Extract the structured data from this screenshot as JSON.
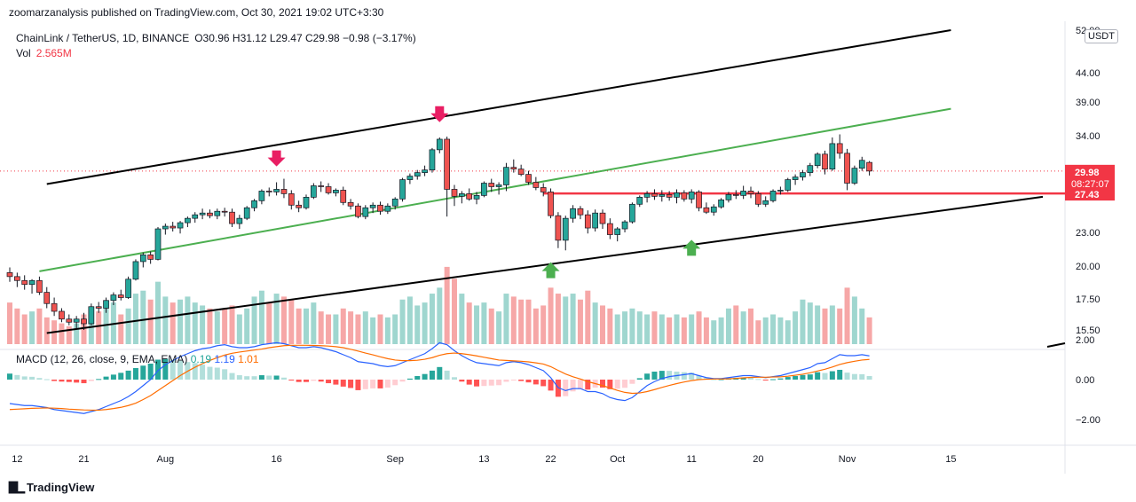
{
  "header": {
    "publisher": "zoomarzanalysis published on TradingView.com, Oct 30, 2021 19:02 UTC+3:30"
  },
  "legend": {
    "symbol": "ChainLink / TetherUS, 1D, BINANCE",
    "ohlc": "O30.96  H31.12  L29.47  C29.98  −0.98 (−3.17%)",
    "vol_label": "Vol",
    "vol_value": "2.565M"
  },
  "currency": "USDT",
  "price_axis": {
    "ticks": [
      {
        "value": 52.0,
        "label": "52.00"
      },
      {
        "value": 44.0,
        "label": "44.00"
      },
      {
        "value": 39.0,
        "label": "39.00"
      },
      {
        "value": 34.0,
        "label": "34.00"
      },
      {
        "value": 23.0,
        "label": "23.00"
      },
      {
        "value": 20.0,
        "label": "20.00"
      },
      {
        "value": 17.5,
        "label": "17.50"
      },
      {
        "value": 15.5,
        "label": "15.50"
      }
    ],
    "last_price": "29.98",
    "countdown": "08:27:07",
    "level_price": "27.43"
  },
  "macd_legend": {
    "label": "MACD (12, 26, close, 9, EMA, EMA)",
    "hist": "0.19",
    "macd": "1.19",
    "signal": "1.01"
  },
  "macd_axis": [
    {
      "value": 2,
      "label": "2.00"
    },
    {
      "value": 0,
      "label": "0.00"
    },
    {
      "value": -2,
      "label": "−2.00"
    }
  ],
  "time_axis": [
    {
      "bar": 1,
      "label": "12"
    },
    {
      "bar": 10,
      "label": "21"
    },
    {
      "bar": 21,
      "label": "Aug"
    },
    {
      "bar": 36,
      "label": "16"
    },
    {
      "bar": 52,
      "label": "Sep"
    },
    {
      "bar": 64,
      "label": "13"
    },
    {
      "bar": 73,
      "label": "22"
    },
    {
      "bar": 82,
      "label": "Oct"
    },
    {
      "bar": 92,
      "label": "11"
    },
    {
      "bar": 101,
      "label": "20"
    },
    {
      "bar": 113,
      "label": "Nov"
    },
    {
      "bar": 127,
      "label": "15"
    }
  ],
  "footer": {
    "brand": "TradingView"
  },
  "chart_data": {
    "type": "candlestick",
    "symbol": "LINKUSDT",
    "x_start": "2021-07-10",
    "interval": "1D",
    "candles": [
      [
        19.5,
        19.9,
        18.8,
        19.2
      ],
      [
        19.2,
        19.5,
        18.4,
        18.9
      ],
      [
        18.9,
        19.3,
        18.2,
        18.6
      ],
      [
        18.6,
        19.0,
        17.9,
        18.9
      ],
      [
        18.9,
        19.2,
        17.8,
        18.0
      ],
      [
        18.0,
        18.4,
        16.9,
        17.2
      ],
      [
        17.2,
        17.6,
        16.4,
        16.7
      ],
      [
        16.7,
        16.9,
        16.0,
        16.2
      ],
      [
        16.2,
        16.5,
        15.8,
        16.0
      ],
      [
        16.0,
        16.4,
        15.6,
        16.2
      ],
      [
        16.2,
        16.6,
        15.5,
        15.9
      ],
      [
        15.9,
        17.2,
        15.8,
        17.0
      ],
      [
        17.0,
        17.3,
        16.6,
        16.9
      ],
      [
        16.9,
        17.6,
        16.6,
        17.4
      ],
      [
        17.4,
        18.0,
        17.1,
        17.8
      ],
      [
        17.8,
        18.2,
        17.4,
        17.6
      ],
      [
        17.6,
        19.2,
        17.5,
        19.0
      ],
      [
        19.0,
        20.6,
        18.9,
        20.4
      ],
      [
        20.4,
        21.2,
        19.9,
        21.0
      ],
      [
        21.0,
        21.3,
        20.2,
        20.6
      ],
      [
        20.6,
        23.6,
        20.5,
        23.4
      ],
      [
        23.4,
        24.0,
        22.8,
        23.7
      ],
      [
        23.7,
        24.2,
        23.1,
        23.5
      ],
      [
        23.5,
        24.3,
        22.9,
        24.1
      ],
      [
        24.1,
        24.8,
        23.6,
        24.6
      ],
      [
        24.6,
        25.3,
        24.1,
        25.0
      ],
      [
        25.0,
        25.7,
        24.5,
        25.2
      ],
      [
        25.2,
        25.6,
        24.6,
        24.9
      ],
      [
        24.9,
        25.7,
        24.5,
        25.4
      ],
      [
        25.4,
        25.8,
        24.8,
        25.3
      ],
      [
        25.3,
        25.7,
        23.6,
        24.0
      ],
      [
        24.0,
        25.0,
        23.4,
        24.6
      ],
      [
        24.6,
        26.0,
        24.4,
        25.8
      ],
      [
        25.8,
        26.8,
        25.4,
        26.6
      ],
      [
        26.6,
        27.9,
        26.2,
        27.7
      ],
      [
        27.7,
        28.1,
        27.1,
        27.6
      ],
      [
        27.6,
        28.7,
        27.2,
        27.9
      ],
      [
        27.9,
        29.1,
        26.9,
        27.4
      ],
      [
        27.4,
        27.8,
        25.6,
        26.1
      ],
      [
        26.1,
        26.6,
        25.3,
        25.8
      ],
      [
        25.8,
        27.3,
        25.6,
        27.0
      ],
      [
        27.0,
        28.6,
        26.8,
        28.3
      ],
      [
        28.3,
        28.8,
        27.6,
        28.2
      ],
      [
        28.2,
        28.6,
        27.3,
        27.5
      ],
      [
        27.5,
        28.0,
        27.1,
        27.8
      ],
      [
        27.8,
        28.2,
        26.1,
        26.4
      ],
      [
        26.4,
        26.8,
        25.6,
        26.0
      ],
      [
        26.0,
        26.3,
        24.6,
        24.8
      ],
      [
        24.8,
        26.1,
        24.5,
        25.8
      ],
      [
        25.8,
        26.4,
        25.2,
        26.1
      ],
      [
        26.1,
        26.5,
        25.0,
        25.4
      ],
      [
        25.4,
        26.3,
        25.1,
        26.0
      ],
      [
        26.0,
        27.0,
        25.6,
        26.8
      ],
      [
        26.8,
        29.2,
        26.5,
        29.0
      ],
      [
        29.0,
        29.7,
        28.5,
        29.4
      ],
      [
        29.4,
        30.1,
        29.0,
        29.8
      ],
      [
        29.8,
        30.6,
        29.4,
        30.1
      ],
      [
        30.1,
        32.6,
        29.8,
        32.4
      ],
      [
        32.4,
        33.8,
        32.0,
        33.6
      ],
      [
        33.6,
        33.9,
        24.8,
        27.9
      ],
      [
        27.9,
        28.4,
        26.0,
        27.1
      ],
      [
        27.1,
        27.7,
        26.3,
        27.4
      ],
      [
        27.4,
        28.0,
        26.6,
        26.8
      ],
      [
        26.8,
        27.6,
        26.2,
        27.2
      ],
      [
        27.2,
        28.8,
        27.0,
        28.6
      ],
      [
        28.6,
        29.1,
        27.6,
        28.2
      ],
      [
        28.2,
        28.7,
        27.3,
        28.4
      ],
      [
        28.4,
        30.9,
        27.7,
        30.4
      ],
      [
        30.4,
        31.3,
        29.8,
        30.2
      ],
      [
        30.2,
        30.7,
        29.4,
        29.6
      ],
      [
        29.6,
        30.0,
        28.4,
        28.7
      ],
      [
        28.7,
        29.3,
        27.8,
        28.1
      ],
      [
        28.1,
        28.6,
        27.1,
        27.6
      ],
      [
        27.6,
        28.0,
        24.6,
        24.9
      ],
      [
        24.9,
        25.3,
        21.6,
        22.3
      ],
      [
        22.3,
        24.9,
        21.4,
        24.6
      ],
      [
        24.6,
        26.1,
        24.1,
        25.7
      ],
      [
        25.7,
        26.0,
        24.5,
        25.0
      ],
      [
        25.0,
        25.5,
        22.9,
        23.5
      ],
      [
        23.5,
        25.6,
        23.1,
        25.2
      ],
      [
        25.2,
        25.6,
        23.4,
        24.0
      ],
      [
        24.0,
        24.6,
        22.4,
        22.8
      ],
      [
        22.8,
        23.6,
        22.2,
        23.4
      ],
      [
        23.4,
        24.4,
        23.0,
        24.2
      ],
      [
        24.2,
        26.4,
        24.0,
        26.2
      ],
      [
        26.2,
        27.2,
        25.9,
        27.0
      ],
      [
        27.0,
        27.7,
        26.4,
        27.4
      ],
      [
        27.4,
        27.9,
        26.7,
        27.1
      ],
      [
        27.1,
        27.8,
        26.5,
        27.3
      ],
      [
        27.3,
        27.7,
        26.6,
        27.0
      ],
      [
        27.0,
        27.9,
        26.3,
        27.5
      ],
      [
        27.5,
        27.8,
        26.5,
        26.8
      ],
      [
        26.8,
        27.9,
        26.3,
        27.6
      ],
      [
        27.6,
        27.8,
        25.4,
        25.8
      ],
      [
        25.8,
        26.4,
        25.1,
        25.3
      ],
      [
        25.3,
        26.2,
        24.9,
        25.9
      ],
      [
        25.9,
        26.9,
        25.7,
        26.7
      ],
      [
        26.7,
        27.6,
        26.4,
        27.3
      ],
      [
        27.3,
        27.8,
        26.8,
        27.2
      ],
      [
        27.2,
        28.3,
        26.8,
        27.7
      ],
      [
        27.7,
        28.2,
        26.9,
        27.4
      ],
      [
        27.4,
        27.7,
        25.9,
        26.2
      ],
      [
        26.2,
        27.1,
        25.9,
        26.6
      ],
      [
        26.6,
        27.9,
        26.4,
        27.7
      ],
      [
        27.7,
        28.2,
        27.3,
        27.8
      ],
      [
        27.8,
        29.2,
        27.6,
        29.0
      ],
      [
        29.0,
        29.6,
        28.4,
        29.3
      ],
      [
        29.3,
        30.1,
        28.9,
        29.8
      ],
      [
        29.8,
        30.9,
        29.4,
        30.6
      ],
      [
        30.6,
        32.1,
        30.3,
        31.9
      ],
      [
        31.9,
        32.3,
        29.6,
        30.2
      ],
      [
        30.2,
        33.8,
        30.0,
        33.1
      ],
      [
        33.1,
        34.2,
        31.4,
        32.0
      ],
      [
        32.0,
        32.5,
        27.8,
        28.6
      ],
      [
        28.6,
        30.6,
        28.4,
        30.3
      ],
      [
        30.3,
        31.6,
        30.0,
        31.2
      ],
      [
        30.96,
        31.12,
        29.47,
        29.98
      ]
    ],
    "volume": [
      0.7,
      0.6,
      0.5,
      0.55,
      0.6,
      0.45,
      0.4,
      0.35,
      0.3,
      0.35,
      0.5,
      0.6,
      0.55,
      0.6,
      0.7,
      0.5,
      0.6,
      0.85,
      0.9,
      0.75,
      1.05,
      0.8,
      0.7,
      0.75,
      0.8,
      0.7,
      0.65,
      0.6,
      0.55,
      0.6,
      0.65,
      0.5,
      0.6,
      0.8,
      0.9,
      0.7,
      0.85,
      0.8,
      0.75,
      0.6,
      0.6,
      0.7,
      0.55,
      0.5,
      0.5,
      0.6,
      0.55,
      0.5,
      0.55,
      0.45,
      0.5,
      0.45,
      0.5,
      0.75,
      0.8,
      0.65,
      0.7,
      0.85,
      0.95,
      1.3,
      1.1,
      0.85,
      0.7,
      0.65,
      0.7,
      0.6,
      0.55,
      0.85,
      0.8,
      0.75,
      0.75,
      0.6,
      0.65,
      0.95,
      0.85,
      0.8,
      0.85,
      0.75,
      0.9,
      0.7,
      0.65,
      0.6,
      0.5,
      0.55,
      0.6,
      0.55,
      0.5,
      0.55,
      0.5,
      0.45,
      0.5,
      0.45,
      0.5,
      0.55,
      0.45,
      0.4,
      0.45,
      0.6,
      0.65,
      0.55,
      0.6,
      0.4,
      0.45,
      0.5,
      0.45,
      0.4,
      0.55,
      0.75,
      0.7,
      0.65,
      0.6,
      0.65,
      0.6,
      0.95,
      0.8,
      0.6,
      0.45
    ],
    "macd_line": [
      -1.2,
      -1.25,
      -1.3,
      -1.3,
      -1.35,
      -1.4,
      -1.5,
      -1.55,
      -1.6,
      -1.65,
      -1.7,
      -1.6,
      -1.5,
      -1.35,
      -1.2,
      -1.05,
      -0.85,
      -0.6,
      -0.3,
      0.0,
      0.45,
      0.75,
      0.95,
      1.15,
      1.3,
      1.45,
      1.55,
      1.6,
      1.7,
      1.75,
      1.65,
      1.6,
      1.6,
      1.65,
      1.75,
      1.8,
      1.85,
      1.8,
      1.7,
      1.6,
      1.6,
      1.65,
      1.6,
      1.5,
      1.4,
      1.25,
      1.1,
      0.9,
      0.85,
      0.8,
      0.7,
      0.65,
      0.7,
      0.85,
      1.0,
      1.15,
      1.3,
      1.55,
      1.85,
      1.75,
      1.45,
      1.2,
      1.0,
      0.85,
      0.8,
      0.75,
      0.7,
      0.85,
      0.9,
      0.85,
      0.75,
      0.6,
      0.45,
      0.1,
      -0.4,
      -0.55,
      -0.45,
      -0.45,
      -0.6,
      -0.6,
      -0.7,
      -0.9,
      -1.0,
      -1.05,
      -0.9,
      -0.6,
      -0.3,
      -0.1,
      0.05,
      0.15,
      0.2,
      0.25,
      0.3,
      0.2,
      0.1,
      0.05,
      0.05,
      0.1,
      0.15,
      0.2,
      0.2,
      0.15,
      0.1,
      0.15,
      0.2,
      0.3,
      0.4,
      0.5,
      0.6,
      0.8,
      0.85,
      1.05,
      1.25,
      1.2,
      1.2,
      1.25,
      1.19
    ],
    "signal_line": [
      -1.5,
      -1.48,
      -1.46,
      -1.44,
      -1.43,
      -1.42,
      -1.43,
      -1.45,
      -1.48,
      -1.5,
      -1.52,
      -1.53,
      -1.53,
      -1.5,
      -1.45,
      -1.39,
      -1.3,
      -1.18,
      -1.0,
      -0.8,
      -0.55,
      -0.3,
      -0.05,
      0.2,
      0.42,
      0.62,
      0.8,
      0.96,
      1.1,
      1.23,
      1.32,
      1.38,
      1.43,
      1.48,
      1.53,
      1.6,
      1.65,
      1.7,
      1.72,
      1.72,
      1.72,
      1.71,
      1.7,
      1.68,
      1.65,
      1.6,
      1.52,
      1.43,
      1.33,
      1.24,
      1.14,
      1.05,
      0.98,
      0.95,
      0.95,
      0.97,
      1.02,
      1.1,
      1.22,
      1.3,
      1.33,
      1.3,
      1.25,
      1.19,
      1.12,
      1.05,
      0.98,
      0.96,
      0.94,
      0.92,
      0.89,
      0.84,
      0.78,
      0.65,
      0.46,
      0.28,
      0.14,
      0.03,
      -0.1,
      -0.2,
      -0.3,
      -0.42,
      -0.54,
      -0.64,
      -0.69,
      -0.67,
      -0.6,
      -0.5,
      -0.39,
      -0.29,
      -0.2,
      -0.12,
      -0.05,
      0.0,
      0.02,
      0.03,
      0.03,
      0.04,
      0.06,
      0.09,
      0.11,
      0.12,
      0.12,
      0.13,
      0.14,
      0.17,
      0.22,
      0.27,
      0.34,
      0.43,
      0.52,
      0.63,
      0.76,
      0.85,
      0.92,
      0.98,
      1.01
    ],
    "resistance_level": 27.43,
    "last_price": 29.98,
    "channel_upper": [
      [
        5,
        28.5
      ],
      [
        127,
        52.0
      ]
    ],
    "channel_lower": [
      [
        5,
        15.3
      ],
      [
        127,
        27.4
      ],
      [
        145,
        15.0
      ]
    ],
    "channel_mid": [
      [
        4,
        19.6
      ],
      [
        127,
        38.0
      ]
    ],
    "horizontal_segment": {
      "from_bar": 72,
      "to_bar": 127,
      "price": 27.43
    },
    "markers": [
      {
        "bar": 36,
        "type": "down",
        "price": 30.5
      },
      {
        "bar": 58,
        "type": "down",
        "price": 36.0
      },
      {
        "bar": 73,
        "type": "up",
        "price": 20.5
      },
      {
        "bar": 92,
        "type": "up",
        "price": 22.5
      }
    ],
    "ylabel": "",
    "xlabel": ""
  }
}
